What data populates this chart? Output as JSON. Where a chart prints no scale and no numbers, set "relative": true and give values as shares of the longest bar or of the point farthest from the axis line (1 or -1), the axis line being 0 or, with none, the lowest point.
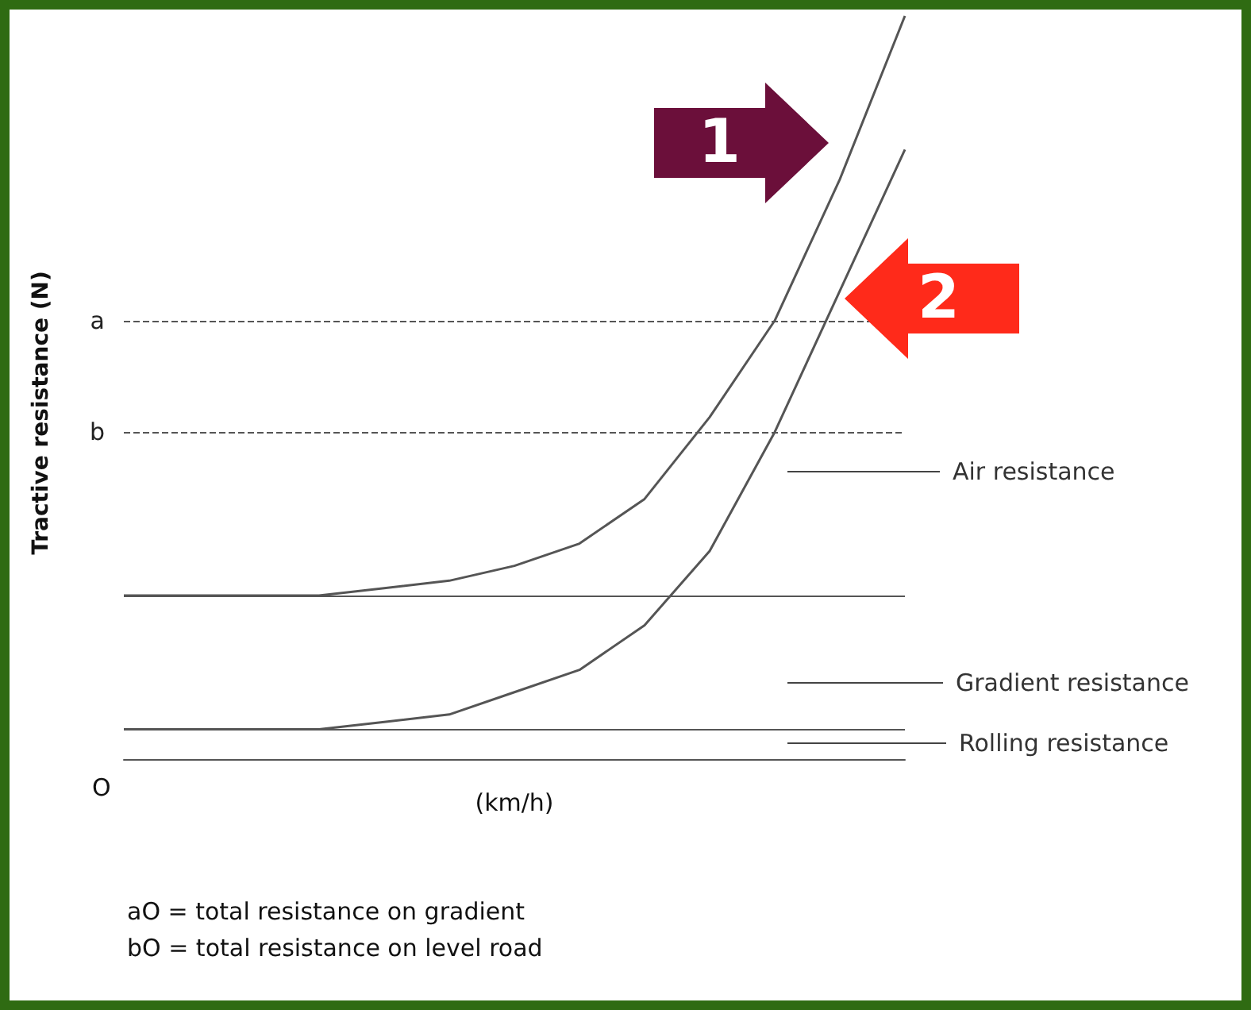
{
  "chart_data": {
    "type": "line",
    "relative": true,
    "xlabel": "(km/h)",
    "ylabel": "Tractive resistance (N)",
    "categories": [
      null,
      null,
      null,
      null,
      null,
      null,
      null,
      null,
      null,
      null,
      null,
      null,
      null
    ],
    "series": [
      {
        "color": "#555555",
        "values": [
          0.22,
          0.22,
          0.22,
          0.22,
          0.23,
          0.24,
          0.26,
          0.29,
          0.35,
          0.46,
          0.59,
          0.78,
          1
        ]
      },
      {
        "color": "#555555",
        "values": [
          0.04,
          0.04,
          0.04,
          0.04,
          0.05,
          0.06,
          0.09,
          0.12,
          0.18,
          0.28,
          0.44,
          0.63,
          0.82
        ]
      }
    ],
    "ref_lines": [
      {
        "axis": "y",
        "value": 0.59,
        "label": "a",
        "line_style": "dashed",
        "color": "#555555"
      },
      {
        "axis": "y",
        "value": 0.44,
        "label": "b",
        "line_style": "dashed",
        "color": "#555555"
      },
      {
        "axis": "y",
        "value": 0.22,
        "line_style": "solid",
        "color": "#555555"
      },
      {
        "axis": "y",
        "value": 0.04,
        "line_style": "solid",
        "color": "#555555"
      }
    ],
    "annotations": [
      "Air resistance",
      "Gradient resistance",
      "Rolling resistance",
      "aO = total resistance on gradient",
      "bO = total resistance on level road",
      "O",
      "1",
      "2"
    ],
    "marker": "none",
    "line_style": "solid"
  }
}
